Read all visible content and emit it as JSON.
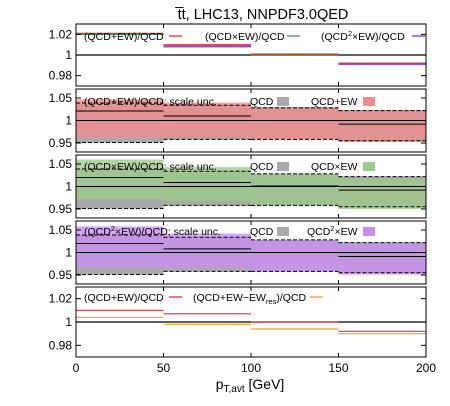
{
  "figure": {
    "title": "t̅t, LHC13, NNPDF3.0QED",
    "xlabel": "p",
    "xlabel_sub": "T,avt",
    "xlabel_unit": " [GeV]"
  },
  "colors": {
    "frame": "#000000",
    "red": "#e0303a",
    "green": "#3c9a3c",
    "purple": "#8a2be2",
    "orange": "#f0a020",
    "black": "#000000",
    "qcd_band": "#a9a9a9",
    "red_band": "#f08c8c",
    "green_band": "#9ccb8c",
    "purple_band": "#c98ef0"
  },
  "chart_data": [
    {
      "type": "line",
      "panel": "ratios",
      "x_edges": [
        0,
        50,
        100,
        150,
        200
      ],
      "xlim": [
        0,
        200
      ],
      "ylim": [
        0.97,
        1.03
      ],
      "yticks": [
        0.98,
        1,
        1.02
      ],
      "ytick_labels": [
        "0.98",
        "1",
        "1.02"
      ],
      "series": [
        {
          "name": "(QCD+EW)/QCD",
          "color_key": "red",
          "values": [
            1.021,
            1.01,
            1.0,
            0.992
          ]
        },
        {
          "name": "(QCD×EW)/QCD",
          "color_key": "green",
          "values": [
            1.02,
            1.009,
            1.001,
            0.992
          ]
        },
        {
          "name_pre": "(QCD",
          "name_sup": "2",
          "name_post": "×EW)/QCD",
          "color_key": "purple",
          "values": [
            1.02,
            1.008,
            1.0,
            0.991
          ]
        },
        {
          "name": "",
          "color_key": "black",
          "values": [
            1.0,
            1.0,
            1.0,
            1.0
          ]
        }
      ]
    },
    {
      "type": "area",
      "panel": "scale-qcd-plus-ew",
      "title": "(QCD+EW)/QCD; scale unc.",
      "x_edges": [
        0,
        50,
        100,
        150,
        200
      ],
      "xlim": [
        0,
        200
      ],
      "ylim": [
        0.93,
        1.07
      ],
      "yticks": [
        0.95,
        1,
        1.05
      ],
      "ytick_labels": [
        "0.95",
        "1",
        "1.05"
      ],
      "legend": [
        "QCD",
        "QCD+EW"
      ],
      "band_color_key": "red_band",
      "qcd_band": {
        "lo": [
          0.951,
          0.958,
          0.958,
          0.955
        ],
        "hi": [
          1.039,
          1.034,
          1.028,
          1.022
        ]
      },
      "band": {
        "lo": [
          0.963,
          0.962,
          0.958,
          0.952
        ],
        "hi": [
          1.047,
          1.04,
          1.03,
          1.023
        ]
      },
      "central": [
        1.021,
        1.01,
        1.0,
        0.992
      ]
    },
    {
      "type": "area",
      "panel": "scale-qcd-times-ew",
      "title": "(QCD×EW)/QCD; scale unc.",
      "x_edges": [
        0,
        50,
        100,
        150,
        200
      ],
      "xlim": [
        0,
        200
      ],
      "ylim": [
        0.93,
        1.07
      ],
      "yticks": [
        0.95,
        1,
        1.05
      ],
      "ytick_labels": [
        "0.95",
        "1",
        "1.05"
      ],
      "legend": [
        "QCD",
        "QCD×EW"
      ],
      "band_color_key": "green_band",
      "qcd_band": {
        "lo": [
          0.951,
          0.958,
          0.958,
          0.955
        ],
        "hi": [
          1.039,
          1.034,
          1.028,
          1.022
        ]
      },
      "band": {
        "lo": [
          0.972,
          0.967,
          0.959,
          0.95
        ],
        "hi": [
          1.06,
          1.043,
          1.028,
          1.018
        ]
      },
      "central": [
        1.02,
        1.009,
        1.001,
        0.992
      ]
    },
    {
      "type": "area",
      "panel": "scale-qcd2-times-ew",
      "title_pre": "(QCD",
      "title_sup": "2",
      "title_post": "×EW)/QCD; scale unc.",
      "x_edges": [
        0,
        50,
        100,
        150,
        200
      ],
      "xlim": [
        0,
        200
      ],
      "ylim": [
        0.93,
        1.07
      ],
      "yticks": [
        0.95,
        1,
        1.05
      ],
      "ytick_labels": [
        "0.95",
        "1",
        "1.05"
      ],
      "legend_pre": "QCD",
      "legend_sup": "2",
      "legend_post": "×EW",
      "legend_qcd": "QCD",
      "band_color_key": "purple_band",
      "qcd_band": {
        "lo": [
          0.951,
          0.958,
          0.958,
          0.955
        ],
        "hi": [
          1.039,
          1.034,
          1.028,
          1.022
        ]
      },
      "band": {
        "lo": [
          0.968,
          0.966,
          0.958,
          0.951
        ],
        "hi": [
          1.058,
          1.042,
          1.028,
          1.019
        ]
      },
      "central": [
        1.02,
        1.008,
        1.0,
        0.991
      ]
    },
    {
      "type": "line",
      "panel": "resummation",
      "x_edges": [
        0,
        50,
        100,
        150,
        200
      ],
      "xlim": [
        0,
        200
      ],
      "xticks": [
        0,
        50,
        100,
        150,
        200
      ],
      "xtick_labels": [
        "0",
        "50",
        "100",
        "150",
        "200"
      ],
      "ylim": [
        0.97,
        1.03
      ],
      "yticks": [
        0.98,
        1,
        1.02
      ],
      "ytick_labels": [
        "0.98",
        "1",
        "1.02"
      ],
      "series": [
        {
          "name": "(QCD+EW)/QCD",
          "color_key": "red",
          "values": [
            1.01,
            1.007,
            1.0,
            0.992
          ]
        },
        {
          "name_pre": "(QCD+EW−EW",
          "name_sub": "res",
          "name_post": ")/QCD",
          "color_key": "orange",
          "values": [
            1.004,
            0.998,
            0.994,
            0.99
          ]
        },
        {
          "name": "",
          "color_key": "black",
          "values": [
            1.0,
            1.0,
            1.0,
            1.0
          ]
        }
      ]
    }
  ]
}
